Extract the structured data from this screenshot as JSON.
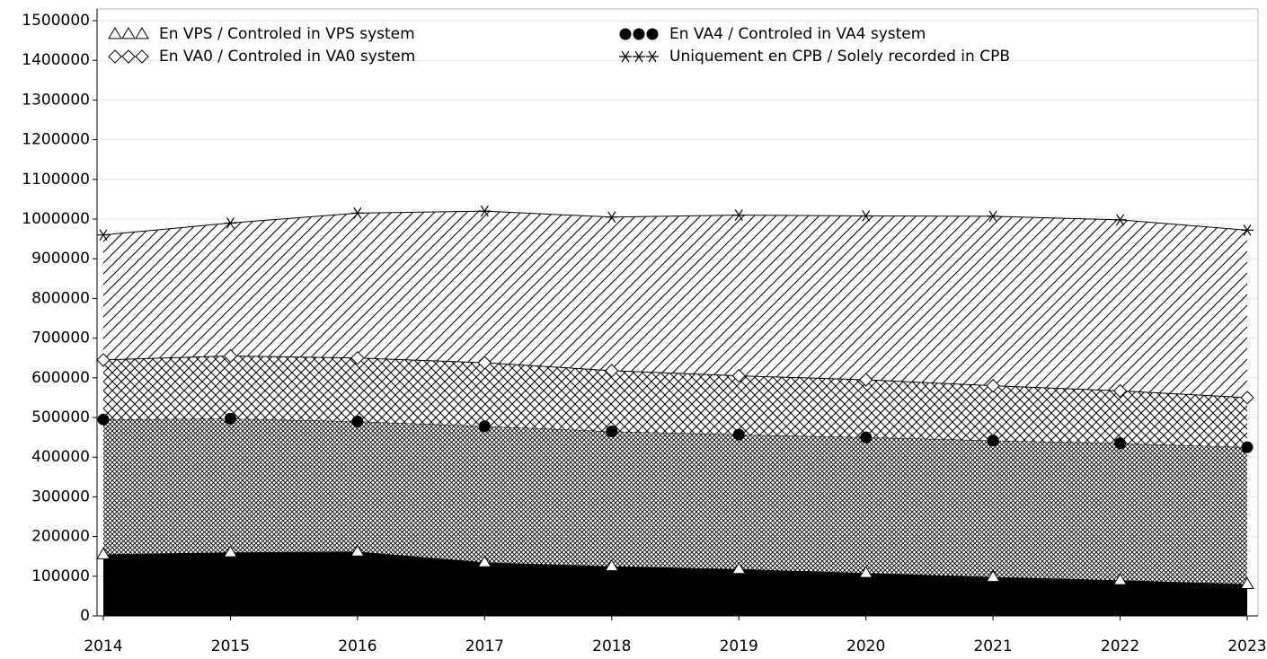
{
  "chart_data": {
    "type": "stacked-area",
    "categories": [
      "2014",
      "2015",
      "2016",
      "2017",
      "2018",
      "2019",
      "2020",
      "2021",
      "2022",
      "2023"
    ],
    "series": [
      {
        "name": "En VPS / Controled in VPS system",
        "color": "#000000",
        "pattern": "solid",
        "marker": "triangle",
        "values": [
          155000,
          160000,
          162000,
          135000,
          125000,
          118000,
          108000,
          98000,
          90000,
          80000
        ]
      },
      {
        "name": "En VA4 / Controled in VA4 system",
        "color": "#000000",
        "pattern": "crosshatch-fine",
        "marker": "circle",
        "values": [
          340000,
          337000,
          328000,
          343000,
          340000,
          339000,
          342000,
          344000,
          345000,
          345000
        ]
      },
      {
        "name": "En VA0 / Controled in VA0 system",
        "color": "#000000",
        "pattern": "crosshatch",
        "marker": "diamond",
        "values": [
          150000,
          158000,
          160000,
          160000,
          153000,
          148000,
          145000,
          138000,
          132000,
          125000
        ]
      },
      {
        "name": "Uniquement en CPB / Solely recorded in CPB",
        "color": "#000000",
        "pattern": "diagonal",
        "marker": "star",
        "values": [
          315000,
          335000,
          365000,
          382000,
          387000,
          405000,
          413000,
          427000,
          431000,
          422000
        ]
      }
    ],
    "ylim": [
      0,
      1500000
    ],
    "yticks": [
      0,
      100000,
      200000,
      300000,
      400000,
      500000,
      600000,
      700000,
      800000,
      900000,
      1000000,
      1100000,
      1200000,
      1300000,
      1400000,
      1500000
    ],
    "grid": true,
    "legend": "top"
  }
}
